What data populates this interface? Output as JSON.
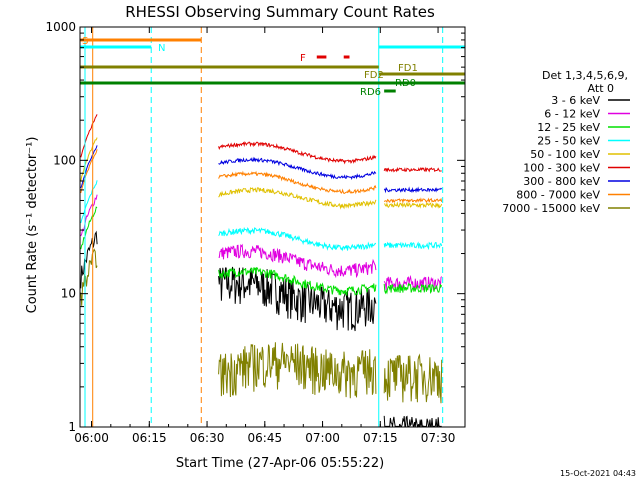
{
  "chart_data": {
    "type": "line",
    "title": "RHESSI Observing Summary Count Rates",
    "xlabel": "Start Time (27-Apr-06 05:55:22)",
    "ylabel": "Count Rate (s⁻¹ detector⁻¹)",
    "ylim": [
      1,
      1000
    ],
    "y_scale": "log",
    "xlim_minutes": [
      -3,
      97
    ],
    "x_tick_labels": [
      "06:00",
      "06:15",
      "06:30",
      "06:45",
      "07:00",
      "07:15",
      "07:30"
    ],
    "x_tick_minutes": [
      0,
      15,
      30,
      45,
      60,
      75,
      90
    ],
    "y_tick_labels": [
      "1",
      "10",
      "100",
      "1000"
    ],
    "y_tick_values": [
      1,
      10,
      100,
      1000
    ],
    "legend": {
      "header": [
        "Det 1,3,4,5,6,9,",
        "Att 0"
      ],
      "placement": "right"
    },
    "footer_date": "15-Oct-2021 04:43",
    "series": [
      {
        "name": "3 - 6 keV",
        "color": "#000000",
        "pre": 28,
        "start": 12,
        "mid": 9,
        "end": 0.9,
        "noise": 0.35
      },
      {
        "name": "6 - 12 keV",
        "color": "#e000e0",
        "pre": 55,
        "start": 20,
        "mid": 17,
        "end": 12,
        "noise": 0.12
      },
      {
        "name": "12 - 25 keV",
        "color": "#00e000",
        "pre": 45,
        "start": 14,
        "mid": 12,
        "end": 11,
        "noise": 0.08
      },
      {
        "name": "25 - 50 keV",
        "color": "#00ffff",
        "pre": 70,
        "start": 28,
        "mid": 25,
        "end": 23,
        "noise": 0.05
      },
      {
        "name": "50 - 100 keV",
        "color": "#e0c000",
        "pre": 150,
        "start": 55,
        "mid": 52,
        "end": 46,
        "noise": 0.04
      },
      {
        "name": "100 - 300 keV",
        "color": "#e00000",
        "pre": 220,
        "start": 125,
        "mid": 112,
        "end": 85,
        "noise": 0.03
      },
      {
        "name": "300 - 800 keV",
        "color": "#0000e0",
        "pre": 130,
        "start": 95,
        "mid": 85,
        "end": 60,
        "noise": 0.03
      },
      {
        "name": "800 - 7000 keV",
        "color": "#ff8000",
        "pre": 120,
        "start": 75,
        "mid": 66,
        "end": 50,
        "noise": 0.03
      },
      {
        "name": "7000 - 15000 keV",
        "color": "#808000",
        "pre": 20,
        "start": 2.5,
        "mid": 3,
        "end": 2.5,
        "noise": 0.4
      }
    ],
    "flags": [
      {
        "label": "S",
        "color": "#ff8000"
      },
      {
        "label": "N",
        "color": "#00ffff"
      },
      {
        "label": "F",
        "color": "#e00000"
      },
      {
        "label": "FD1",
        "color": "#808000"
      },
      {
        "label": "FD2",
        "color": "#808000"
      },
      {
        "label": "RD0",
        "color": "#008000"
      },
      {
        "label": "RD6",
        "color": "#008000"
      }
    ]
  }
}
